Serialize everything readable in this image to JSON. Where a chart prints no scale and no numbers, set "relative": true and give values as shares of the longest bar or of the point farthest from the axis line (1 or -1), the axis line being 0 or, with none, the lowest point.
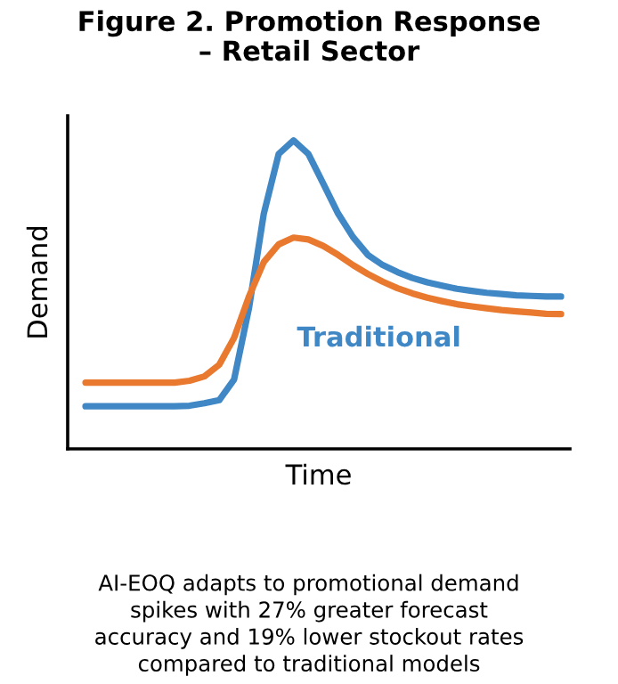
{
  "chart_data": {
    "type": "line",
    "title": "Figure 2. Promotion Response\n– Retail Sector",
    "xlabel": "Time",
    "ylabel": "Demand",
    "relative": true,
    "categories": [
      null,
      null,
      null,
      null,
      null,
      null,
      null,
      null,
      null,
      null,
      null,
      null,
      null,
      null,
      null,
      null,
      null,
      null,
      null,
      null,
      null,
      null,
      null,
      null,
      null,
      null,
      null,
      null,
      null,
      null,
      null,
      null,
      null
    ],
    "series": [
      {
        "name": "Traditional",
        "color": "#3f87c5",
        "values": [
          0.138,
          0.138,
          0.138,
          0.138,
          0.138,
          0.138,
          0.138,
          0.14,
          0.148,
          0.158,
          0.225,
          0.456,
          0.763,
          0.956,
          1,
          0.956,
          0.86,
          0.763,
          0.687,
          0.629,
          0.596,
          0.573,
          0.554,
          0.54,
          0.529,
          0.519,
          0.512,
          0.506,
          0.502,
          0.498,
          0.496,
          0.494,
          0.494
        ]
      },
      {
        "color": "#e8792f",
        "values": [
          0.215,
          0.215,
          0.215,
          0.215,
          0.215,
          0.215,
          0.215,
          0.221,
          0.235,
          0.273,
          0.36,
          0.494,
          0.606,
          0.663,
          0.685,
          0.679,
          0.658,
          0.629,
          0.596,
          0.567,
          0.542,
          0.521,
          0.504,
          0.49,
          0.479,
          0.469,
          0.462,
          0.456,
          0.45,
          0.446,
          0.442,
          0.438,
          0.437
        ]
      }
    ],
    "annotations": [
      "AI-EOQ adapts to promotional demand\nspikes with 27% greater forecast\naccuracy and 19% lower stockout rates\ncompared to traditional models"
    ],
    "legend": false,
    "marker": "none",
    "line_style": "solid"
  }
}
